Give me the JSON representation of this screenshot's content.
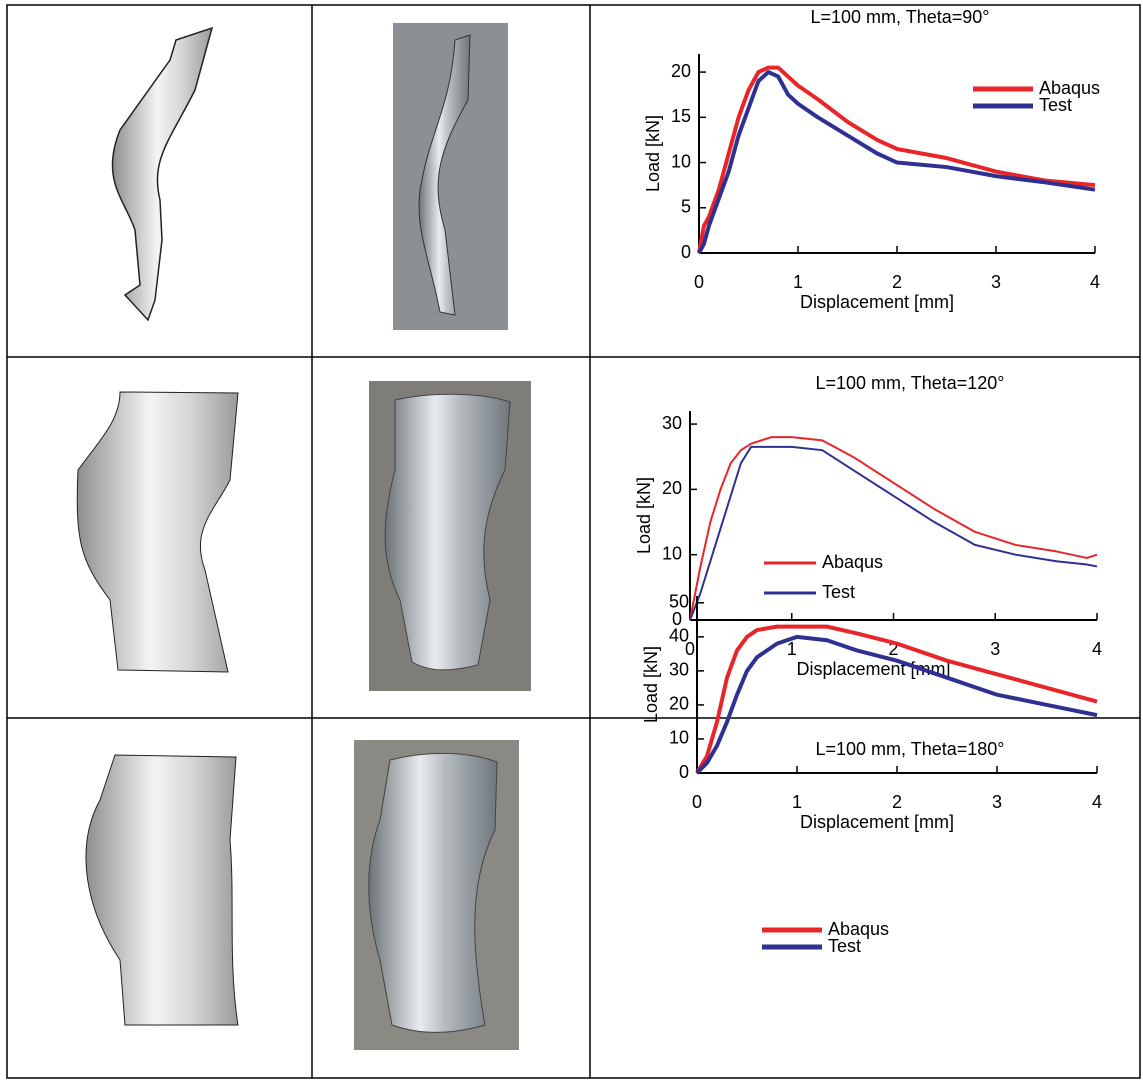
{
  "chart_data": [
    {
      "type": "line",
      "title": "L=100 mm, Theta=90°",
      "x_label": "Displacement [mm]",
      "y_label": "Load [kN]",
      "x": [
        0,
        0.05,
        0.1,
        0.2,
        0.3,
        0.4,
        0.5,
        0.6,
        0.7,
        0.8,
        0.9,
        1.0,
        1.2,
        1.5,
        1.8,
        2,
        2.5,
        3,
        3.5,
        4
      ],
      "series": [
        {
          "name": "Abaqus",
          "color": "#e8262a",
          "values": [
            0,
            3,
            4,
            7,
            11,
            15,
            18,
            20,
            20.5,
            20.5,
            19.5,
            18.5,
            17,
            14.5,
            12.5,
            11.5,
            10.5,
            9,
            8,
            7.5
          ]
        },
        {
          "name": "Test",
          "color": "#2e3192",
          "values": [
            0,
            1,
            3,
            6,
            9,
            13,
            16,
            19,
            20,
            19.5,
            17.5,
            16.5,
            15,
            13,
            11,
            10,
            9.5,
            8.5,
            7.8,
            7
          ]
        }
      ],
      "xlim": [
        0,
        4
      ],
      "ylim": [
        0,
        22
      ],
      "xticks": [
        0,
        1,
        2,
        3,
        4
      ],
      "yticks": [
        0,
        5,
        10,
        15,
        20
      ]
    },
    {
      "type": "line",
      "title": "L=100 mm, Theta=120°",
      "x_label": "Displacement [mm]",
      "y_label": "Load [kN]",
      "x": [
        0,
        0.1,
        0.2,
        0.3,
        0.4,
        0.5,
        0.6,
        0.8,
        1.0,
        1.3,
        1.6,
        2,
        2.4,
        2.8,
        3.2,
        3.6,
        3.9,
        4
      ],
      "series": [
        {
          "name": "Abaqus",
          "color": "#e8262a",
          "values": [
            0,
            8,
            15,
            20,
            24,
            26,
            27,
            28,
            28,
            27.5,
            25,
            21,
            17,
            13.5,
            11.5,
            10.5,
            9.5,
            10
          ]
        },
        {
          "name": "Test",
          "color": "#2e3192",
          "values": [
            0,
            4,
            9,
            14,
            19,
            24,
            26.5,
            26.5,
            26.5,
            26,
            23,
            19,
            15,
            11.5,
            10,
            9,
            8.5,
            8.2
          ]
        }
      ],
      "xlim": [
        0,
        4
      ],
      "ylim": [
        0,
        32
      ],
      "xticks": [
        0,
        1,
        2,
        3,
        4
      ],
      "yticks": [
        0,
        10,
        20,
        30
      ]
    },
    {
      "type": "line",
      "title": "L=100 mm, Theta=180°",
      "x_label": "Displacement [mm]",
      "y_label": "Load [kN]",
      "x": [
        0,
        0.1,
        0.2,
        0.3,
        0.4,
        0.5,
        0.6,
        0.8,
        1.0,
        1.3,
        1.6,
        2,
        2.5,
        3,
        3.5,
        4
      ],
      "series": [
        {
          "name": "Abaqus",
          "color": "#e8262a",
          "values": [
            0,
            5,
            15,
            28,
            36,
            40,
            42,
            43,
            43,
            43,
            41,
            38,
            33,
            29,
            25,
            21
          ]
        },
        {
          "name": "Test",
          "color": "#2e3192",
          "values": [
            0,
            3,
            8,
            15,
            23,
            30,
            34,
            38,
            40,
            39,
            36,
            33,
            28,
            23,
            20,
            17
          ]
        }
      ],
      "xlim": [
        0,
        4
      ],
      "ylim": [
        0,
        52
      ],
      "xticks": [
        0,
        1,
        2,
        3,
        4
      ],
      "yticks": [
        0,
        10,
        20,
        30,
        40,
        50
      ]
    }
  ]
}
